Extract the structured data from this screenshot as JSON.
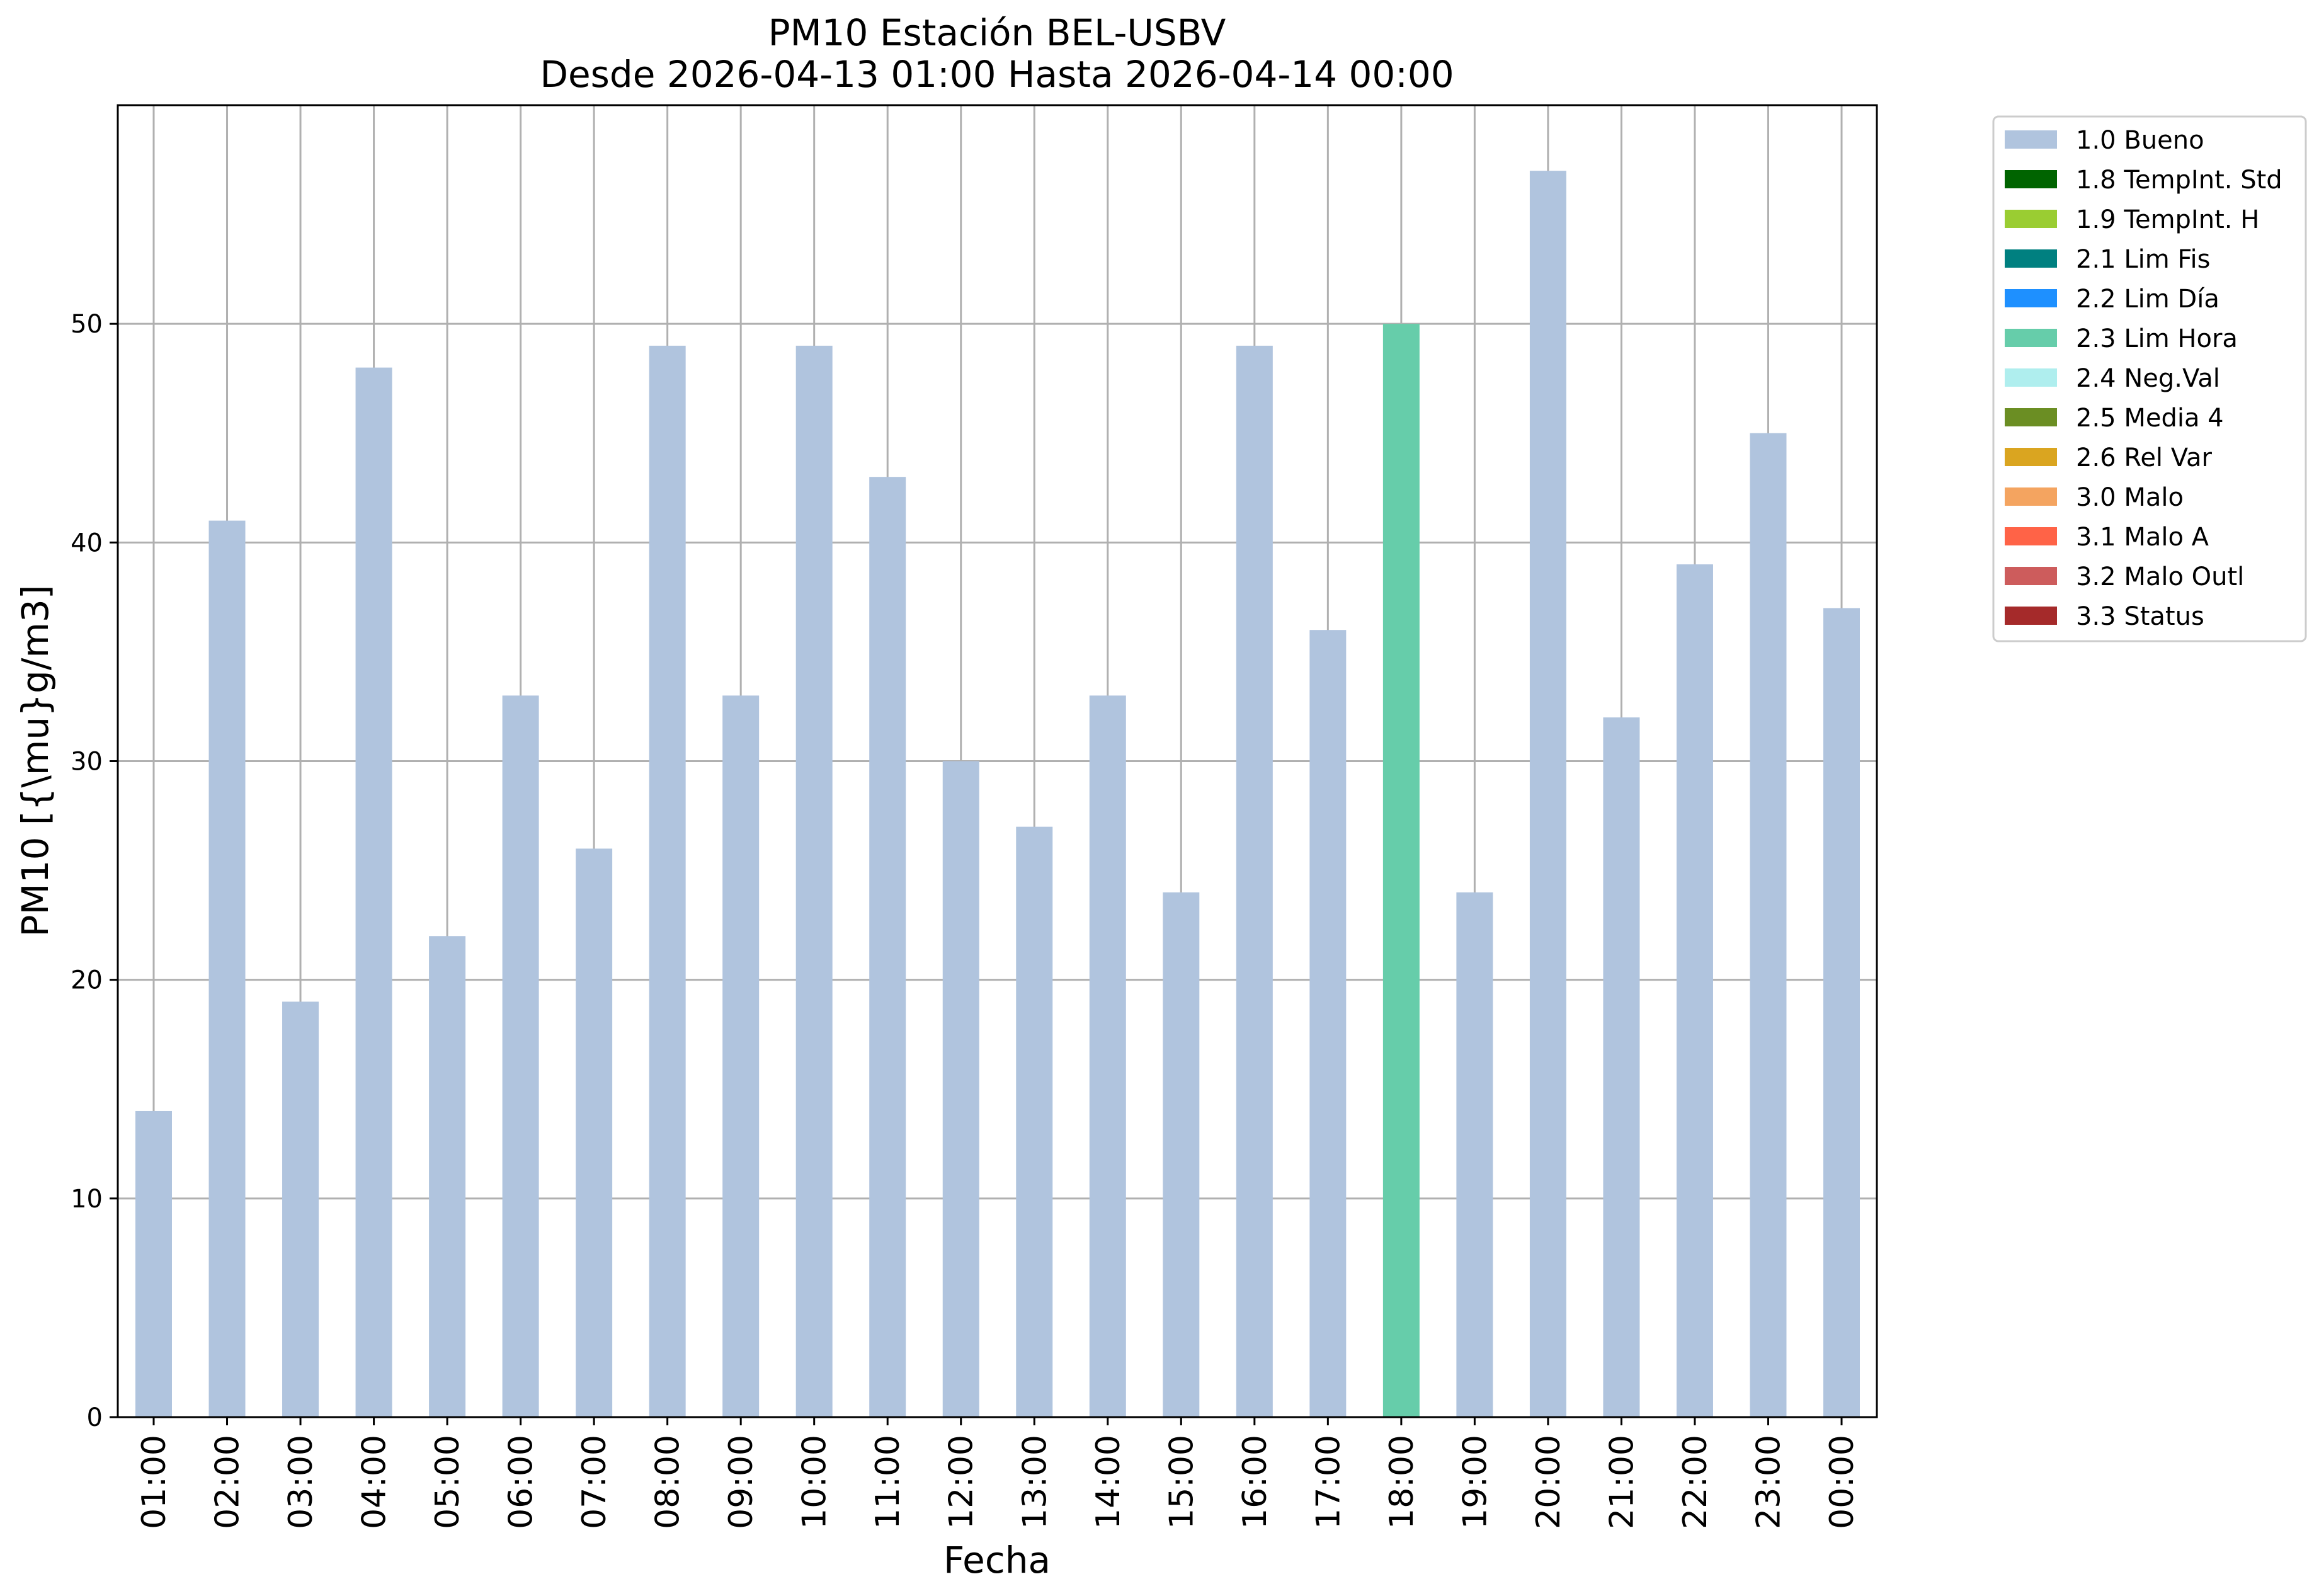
{
  "chart_data": {
    "type": "bar",
    "title": "PM10 Estación BEL-USBV",
    "subtitle": "Desde 2026-04-13 01:00 Hasta 2026-04-14 00:00",
    "xlabel": "Fecha",
    "ylabel": "PM10 [{\\mu}g/m3]",
    "ylim": [
      0,
      60
    ],
    "yticks": [
      0,
      10,
      20,
      30,
      40,
      50
    ],
    "grid": true,
    "legend_position": "outside-right",
    "categories": [
      "01:00",
      "02:00",
      "03:00",
      "04:00",
      "05:00",
      "06:00",
      "07:00",
      "08:00",
      "09:00",
      "10:00",
      "11:00",
      "12:00",
      "13:00",
      "14:00",
      "15:00",
      "16:00",
      "17:00",
      "18:00",
      "19:00",
      "20:00",
      "21:00",
      "22:00",
      "23:00",
      "00:00"
    ],
    "values": [
      14,
      41,
      19,
      48,
      22,
      33,
      26,
      49,
      33,
      49,
      43,
      30,
      27,
      33,
      24,
      49,
      36,
      50,
      24,
      57,
      32,
      39,
      45,
      37
    ],
    "bar_flags": [
      "1.0 Bueno",
      "1.0 Bueno",
      "1.0 Bueno",
      "1.0 Bueno",
      "1.0 Bueno",
      "1.0 Bueno",
      "1.0 Bueno",
      "1.0 Bueno",
      "1.0 Bueno",
      "1.0 Bueno",
      "1.0 Bueno",
      "1.0 Bueno",
      "1.0 Bueno",
      "1.0 Bueno",
      "1.0 Bueno",
      "1.0 Bueno",
      "1.0 Bueno",
      "2.3 Lim Hora",
      "1.0 Bueno",
      "1.0 Bueno",
      "1.0 Bueno",
      "1.0 Bueno",
      "1.0 Bueno",
      "1.0 Bueno"
    ],
    "legend": [
      {
        "label": "1.0 Bueno",
        "color": "#b0c4de"
      },
      {
        "label": "1.8 TempInt. Std",
        "color": "#006400"
      },
      {
        "label": "1.9 TempInt. H",
        "color": "#9acd32"
      },
      {
        "label": "2.1 Lim Fis",
        "color": "#008080"
      },
      {
        "label": "2.2 Lim Día",
        "color": "#1e90ff"
      },
      {
        "label": "2.3 Lim Hora",
        "color": "#66cdaa"
      },
      {
        "label": "2.4 Neg.Val",
        "color": "#afeeee"
      },
      {
        "label": "2.5 Media 4",
        "color": "#6b8e23"
      },
      {
        "label": "2.6 Rel Var",
        "color": "#daa520"
      },
      {
        "label": "3.0 Malo",
        "color": "#f4a460"
      },
      {
        "label": "3.1 Malo A",
        "color": "#ff6347"
      },
      {
        "label": "3.2 Malo Outl",
        "color": "#cd5c5c"
      },
      {
        "label": "3.3 Status",
        "color": "#a52a2a"
      }
    ],
    "grid_color": "#b0b0b0"
  }
}
